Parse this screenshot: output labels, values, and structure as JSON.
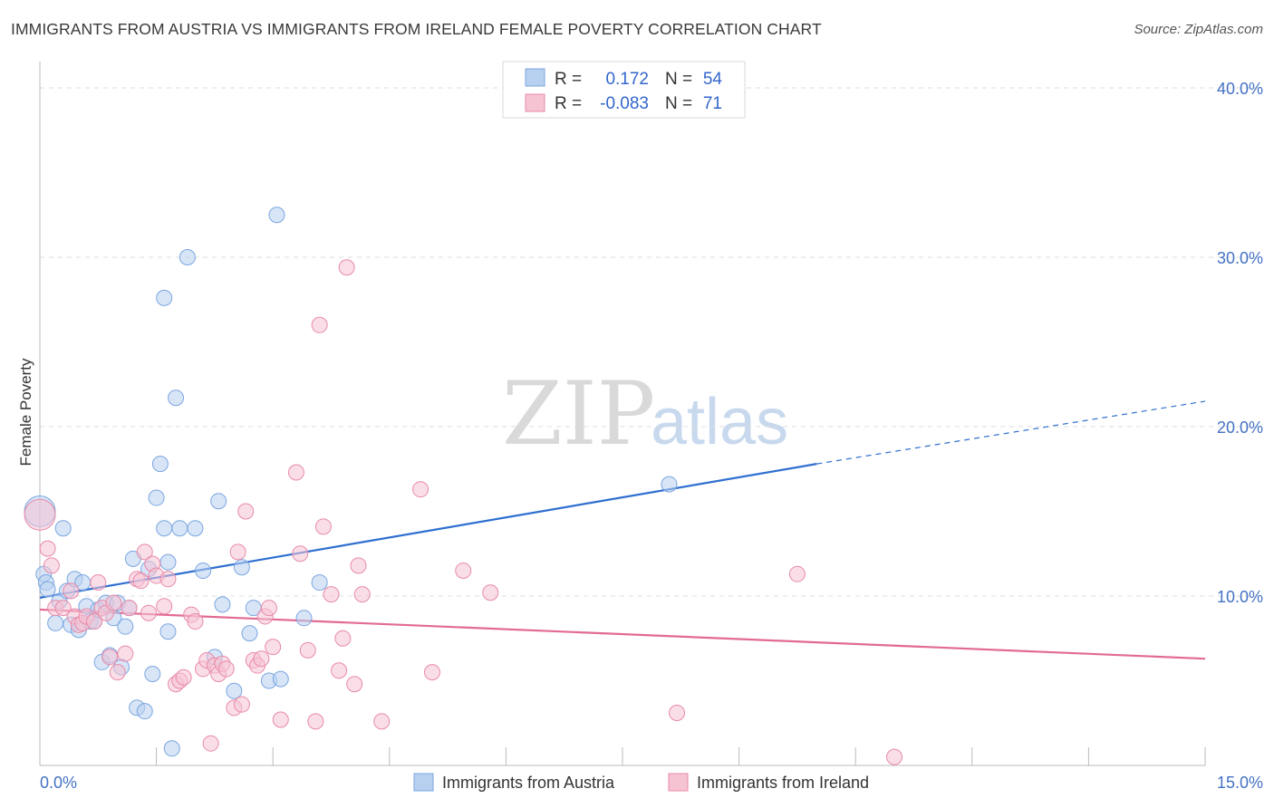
{
  "title": "IMMIGRANTS FROM AUSTRIA VS IMMIGRANTS FROM IRELAND FEMALE POVERTY CORRELATION CHART",
  "source": "Source: ZipAtlas.com",
  "watermark": {
    "zip": "ZIP",
    "atlas": "atlas"
  },
  "chart_data": {
    "type": "scatter",
    "ylabel": "Female Poverty",
    "xlim": [
      0,
      15
    ],
    "ylim": [
      0,
      40
    ],
    "x_tick_labels": [
      "0.0%",
      "15.0%"
    ],
    "y_ticks": [
      10,
      20,
      30,
      40
    ],
    "y_tick_labels": [
      "10.0%",
      "20.0%",
      "30.0%",
      "40.0%"
    ],
    "legend": [
      {
        "name": "Immigrants from Austria",
        "r_label": "R =",
        "r": "0.172",
        "n_label": "N =",
        "n": "54",
        "color": "#7aa6e0",
        "fill": "#b8d0f0"
      },
      {
        "name": "Immigrants from Ireland",
        "r_label": "R =",
        "r": "-0.083",
        "n_label": "N =",
        "n": "71",
        "color": "#e88aa8",
        "fill": "#f6c3d3"
      }
    ],
    "series": [
      {
        "name": "Immigrants from Austria",
        "color": "#7aa6e0",
        "fill": "#b8d0f0",
        "trend": {
          "x0": 0,
          "y0": 9.9,
          "x1": 10.0,
          "y1": 17.8,
          "x_dash_end": 15.0,
          "y_dash_end": 21.5,
          "color": "#2e6fd0"
        },
        "points": [
          [
            0.0,
            15.0
          ],
          [
            0.05,
            11.3
          ],
          [
            0.08,
            10.8
          ],
          [
            0.1,
            10.4
          ],
          [
            0.2,
            8.4
          ],
          [
            0.25,
            9.7
          ],
          [
            0.3,
            14.0
          ],
          [
            0.35,
            10.3
          ],
          [
            0.4,
            8.3
          ],
          [
            0.45,
            11.0
          ],
          [
            0.5,
            8.0
          ],
          [
            0.55,
            10.8
          ],
          [
            0.6,
            9.4
          ],
          [
            0.65,
            8.5
          ],
          [
            0.7,
            8.5
          ],
          [
            0.75,
            9.2
          ],
          [
            0.8,
            6.1
          ],
          [
            0.85,
            9.6
          ],
          [
            0.9,
            6.5
          ],
          [
            0.95,
            8.7
          ],
          [
            1.0,
            9.6
          ],
          [
            1.05,
            5.8
          ],
          [
            1.1,
            8.2
          ],
          [
            1.15,
            9.3
          ],
          [
            1.2,
            12.2
          ],
          [
            1.25,
            3.4
          ],
          [
            1.35,
            3.2
          ],
          [
            1.4,
            11.6
          ],
          [
            1.45,
            5.4
          ],
          [
            1.5,
            15.8
          ],
          [
            1.55,
            17.8
          ],
          [
            1.6,
            14.0
          ],
          [
            1.65,
            12.0
          ],
          [
            1.7,
            1.0
          ],
          [
            1.75,
            21.7
          ],
          [
            1.8,
            14.0
          ],
          [
            1.6,
            27.6
          ],
          [
            1.65,
            7.9
          ],
          [
            1.9,
            30.0
          ],
          [
            2.0,
            14.0
          ],
          [
            2.1,
            11.5
          ],
          [
            2.25,
            6.4
          ],
          [
            2.3,
            15.6
          ],
          [
            2.35,
            9.5
          ],
          [
            2.5,
            4.4
          ],
          [
            2.6,
            11.7
          ],
          [
            2.7,
            7.8
          ],
          [
            2.75,
            9.3
          ],
          [
            2.95,
            5.0
          ],
          [
            3.1,
            5.1
          ],
          [
            3.05,
            32.5
          ],
          [
            3.4,
            8.7
          ],
          [
            3.6,
            10.8
          ],
          [
            8.1,
            16.6
          ]
        ]
      },
      {
        "name": "Immigrants from Ireland",
        "color": "#e88aa8",
        "fill": "#f6c3d3",
        "trend": {
          "x0": 0,
          "y0": 9.2,
          "x1": 15.0,
          "y1": 6.3,
          "color": "#e26a93"
        },
        "points": [
          [
            0.0,
            14.8
          ],
          [
            0.1,
            12.8
          ],
          [
            0.15,
            11.8
          ],
          [
            0.2,
            9.3
          ],
          [
            0.3,
            9.3
          ],
          [
            0.4,
            10.3
          ],
          [
            0.45,
            8.8
          ],
          [
            0.5,
            8.3
          ],
          [
            0.55,
            8.4
          ],
          [
            0.6,
            8.8
          ],
          [
            0.7,
            8.5
          ],
          [
            0.75,
            10.8
          ],
          [
            0.8,
            9.3
          ],
          [
            0.85,
            9.0
          ],
          [
            0.9,
            6.4
          ],
          [
            0.95,
            9.6
          ],
          [
            1.0,
            5.5
          ],
          [
            1.1,
            6.6
          ],
          [
            1.15,
            9.3
          ],
          [
            1.25,
            11.0
          ],
          [
            1.3,
            10.9
          ],
          [
            1.35,
            12.6
          ],
          [
            1.45,
            11.9
          ],
          [
            1.5,
            11.2
          ],
          [
            1.6,
            9.4
          ],
          [
            1.65,
            11.0
          ],
          [
            1.75,
            4.8
          ],
          [
            1.8,
            5.0
          ],
          [
            1.85,
            5.2
          ],
          [
            1.95,
            8.9
          ],
          [
            2.0,
            8.5
          ],
          [
            2.1,
            5.7
          ],
          [
            2.15,
            6.2
          ],
          [
            2.2,
            1.3
          ],
          [
            2.25,
            5.9
          ],
          [
            2.3,
            5.4
          ],
          [
            2.35,
            6.0
          ],
          [
            2.4,
            5.7
          ],
          [
            2.5,
            3.4
          ],
          [
            2.55,
            12.6
          ],
          [
            2.6,
            3.6
          ],
          [
            2.65,
            15.0
          ],
          [
            2.75,
            6.2
          ],
          [
            2.8,
            5.9
          ],
          [
            2.85,
            6.3
          ],
          [
            2.9,
            8.8
          ],
          [
            2.95,
            9.3
          ],
          [
            3.0,
            7.0
          ],
          [
            3.1,
            2.7
          ],
          [
            3.3,
            17.3
          ],
          [
            3.35,
            12.5
          ],
          [
            3.45,
            6.8
          ],
          [
            3.55,
            2.6
          ],
          [
            3.6,
            26.0
          ],
          [
            3.65,
            14.1
          ],
          [
            3.75,
            10.1
          ],
          [
            3.85,
            5.6
          ],
          [
            3.9,
            7.5
          ],
          [
            3.95,
            29.4
          ],
          [
            4.05,
            4.8
          ],
          [
            4.1,
            11.8
          ],
          [
            4.15,
            10.1
          ],
          [
            4.4,
            2.6
          ],
          [
            4.9,
            16.3
          ],
          [
            5.05,
            5.5
          ],
          [
            5.45,
            11.5
          ],
          [
            5.8,
            10.2
          ],
          [
            8.2,
            3.1
          ],
          [
            9.75,
            11.3
          ],
          [
            11.0,
            0.5
          ],
          [
            1.4,
            9.0
          ]
        ]
      }
    ]
  }
}
